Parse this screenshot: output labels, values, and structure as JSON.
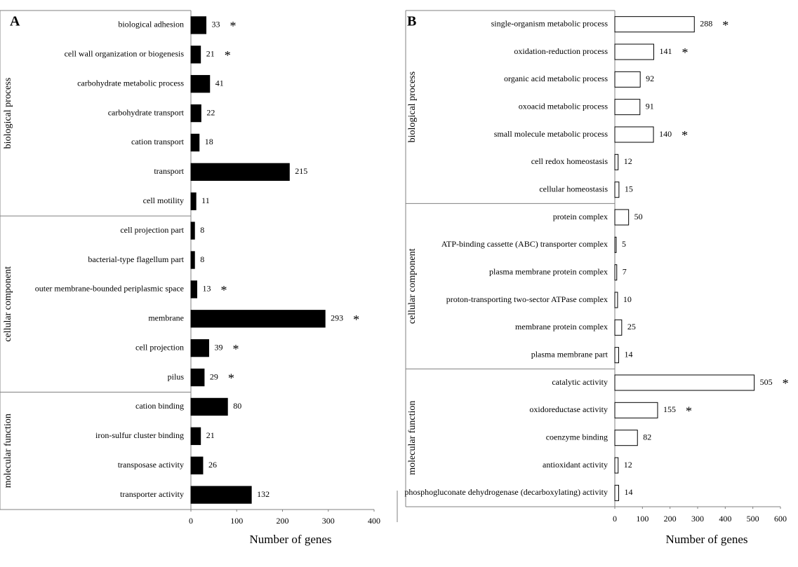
{
  "chart_data": [
    {
      "type": "bar",
      "orientation": "horizontal",
      "panel": "A",
      "color": "#000000",
      "edgecolor": "#000000",
      "xlabel": "Number of genes",
      "xlim": [
        0,
        400
      ],
      "xticks": [
        0,
        100,
        200,
        300,
        400
      ],
      "significance_mark": "*",
      "groups": [
        {
          "name": "biological process",
          "categories": [
            "biological adhesion",
            "cell wall organization or biogenesis",
            "carbohydrate metabolic process",
            "carbohydrate transport",
            "cation transport",
            "transport",
            "cell motility"
          ],
          "values": [
            33,
            21,
            41,
            22,
            18,
            215,
            11
          ],
          "significant": [
            true,
            true,
            false,
            false,
            false,
            false,
            false
          ]
        },
        {
          "name": "cellular component",
          "categories": [
            "cell projection part",
            "bacterial-type flagellum part",
            "outer membrane-bounded periplasmic space",
            "membrane",
            "cell projection",
            "pilus"
          ],
          "values": [
            8,
            8,
            13,
            293,
            39,
            29
          ],
          "significant": [
            false,
            false,
            true,
            true,
            true,
            true
          ]
        },
        {
          "name": "molecular function",
          "categories": [
            "cation binding",
            "iron-sulfur cluster binding",
            "transposase activity",
            "transporter activity"
          ],
          "values": [
            80,
            21,
            26,
            132
          ],
          "significant": [
            false,
            false,
            false,
            false
          ]
        }
      ]
    },
    {
      "type": "bar",
      "orientation": "horizontal",
      "panel": "B",
      "color": "#ffffff",
      "edgecolor": "#000000",
      "xlabel": "Number of genes",
      "xlim": [
        0,
        600
      ],
      "xticks": [
        0,
        100,
        200,
        300,
        400,
        500,
        600
      ],
      "significance_mark": "*",
      "groups": [
        {
          "name": "biological process",
          "categories": [
            "single-organism metabolic process",
            "oxidation-reduction process",
            "organic acid metabolic process",
            "oxoacid metabolic process",
            "small molecule metabolic process",
            "cell redox homeostasis",
            "cellular homeostasis"
          ],
          "values": [
            288,
            141,
            92,
            91,
            140,
            12,
            15
          ],
          "significant": [
            true,
            true,
            false,
            false,
            true,
            false,
            false
          ]
        },
        {
          "name": "cellular component",
          "categories": [
            "protein complex",
            "ATP-binding cassette (ABC) transporter complex",
            "plasma membrane protein complex",
            "proton-transporting two-sector ATPase complex",
            "membrane protein complex",
            "plasma membrane part"
          ],
          "values": [
            50,
            5,
            7,
            10,
            25,
            14
          ],
          "significant": [
            false,
            false,
            false,
            false,
            false,
            false
          ]
        },
        {
          "name": "molecular function",
          "categories": [
            "catalytic activity",
            "oxidoreductase activity",
            "coenzyme binding",
            "antioxidant activity",
            "phosphogluconate dehydrogenase (decarboxylating) activity"
          ],
          "values": [
            505,
            155,
            82,
            12,
            14
          ],
          "significant": [
            true,
            true,
            false,
            false,
            false
          ]
        }
      ]
    }
  ]
}
